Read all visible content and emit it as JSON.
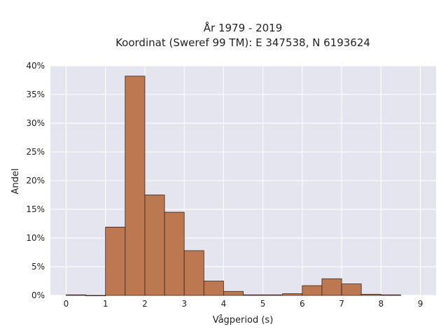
{
  "chart_data": {
    "type": "bar",
    "title": "År 1979 - 2019",
    "subtitle": "Koordinat (Sweref 99 TM): E 347538, N 6193624",
    "xlabel": "Vågperiod (s)",
    "ylabel": "Andel",
    "xlim": [
      -0.4,
      9.4
    ],
    "ylim": [
      0,
      40
    ],
    "x_ticks": [
      0,
      1,
      2,
      3,
      4,
      5,
      6,
      7,
      8,
      9
    ],
    "y_ticks": [
      0,
      5,
      10,
      15,
      20,
      25,
      30,
      35,
      40
    ],
    "y_tick_labels": [
      "0%",
      "5%",
      "10%",
      "15%",
      "20%",
      "25%",
      "30%",
      "35%",
      "40%"
    ],
    "bin_width": 0.5,
    "bins": [
      {
        "x0": 0.0,
        "value": 0.1
      },
      {
        "x0": 0.5,
        "value": 0.0
      },
      {
        "x0": 1.0,
        "value": 11.9
      },
      {
        "x0": 1.5,
        "value": 38.2
      },
      {
        "x0": 2.0,
        "value": 17.5
      },
      {
        "x0": 2.5,
        "value": 14.5
      },
      {
        "x0": 3.0,
        "value": 7.8
      },
      {
        "x0": 3.5,
        "value": 2.5
      },
      {
        "x0": 4.0,
        "value": 0.7
      },
      {
        "x0": 4.5,
        "value": 0.1
      },
      {
        "x0": 5.0,
        "value": 0.1
      },
      {
        "x0": 5.5,
        "value": 0.3
      },
      {
        "x0": 6.0,
        "value": 1.7
      },
      {
        "x0": 6.5,
        "value": 2.9
      },
      {
        "x0": 7.0,
        "value": 2.0
      },
      {
        "x0": 7.5,
        "value": 0.2
      },
      {
        "x0": 8.0,
        "value": 0.1
      }
    ],
    "bar_color": "#bc7851",
    "bar_edge_color": "#3a2418",
    "plot_bg": "#e5e5ef",
    "grid": true
  }
}
